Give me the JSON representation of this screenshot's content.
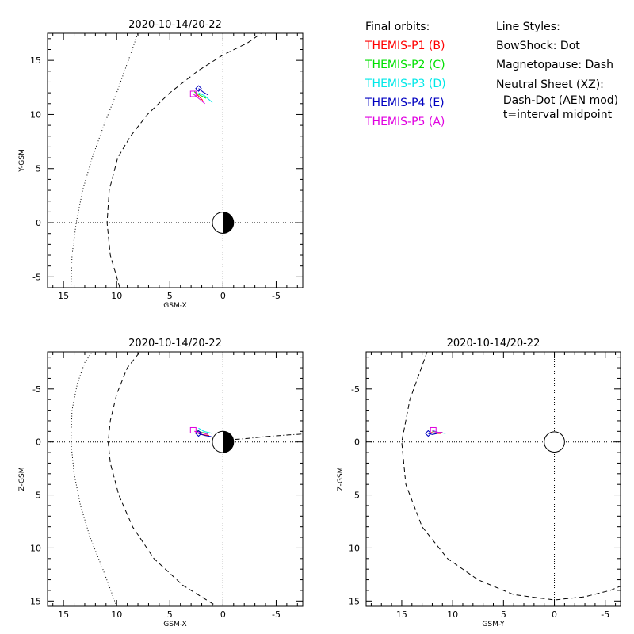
{
  "legend": {
    "orbits_title": "Final orbits:",
    "orbits": [
      {
        "label": "THEMIS-P1 (B)",
        "color": "#ff0000"
      },
      {
        "label": "THEMIS-P2 (C)",
        "color": "#00e000"
      },
      {
        "label": "THEMIS-P3 (D)",
        "color": "#00e8e8"
      },
      {
        "label": "THEMIS-P4 (E)",
        "color": "#0000c0"
      },
      {
        "label": "THEMIS-P5 (A)",
        "color": "#e000e0"
      }
    ],
    "styles_title": "Line Styles:",
    "styles": [
      "BowShock: Dot",
      "Magnetopause: Dash",
      "Neutral Sheet (XZ):",
      "  Dash-Dot (AEN mod)",
      "  t=interval midpoint"
    ]
  },
  "chart_data": [
    {
      "id": "xy",
      "type": "line",
      "title": "2020-10-14/20-22",
      "xlabel": "GSM-X",
      "ylabel": "Y-GSM",
      "xlim": [
        16.5,
        -7.5
      ],
      "ylim": [
        17.5,
        -6
      ],
      "xticks": [
        15,
        10,
        5,
        0,
        -5
      ],
      "yticks": [
        -5,
        0,
        5,
        10,
        15
      ],
      "earth": {
        "x": 0,
        "y": 0,
        "radius": 1,
        "shading": "half-dark"
      },
      "boundaries": {
        "bowshock": {
          "style": "dotted",
          "x": [
            14.3,
            14.2,
            13.8,
            13.2,
            12.3,
            11.2,
            10.0,
            8.9,
            8.0
          ],
          "y": [
            -6,
            -3,
            0,
            3,
            6,
            9,
            12,
            15,
            17.5
          ]
        },
        "magnetopause": {
          "style": "dashed",
          "x": [
            9.7,
            10.6,
            10.9,
            10.7,
            9.9,
            8.7,
            7.1,
            5.0,
            2.4,
            0.0,
            -2.3,
            -3.6
          ],
          "y": [
            -6,
            -3,
            0,
            3,
            6,
            8,
            10,
            12,
            14,
            15.5,
            16.6,
            17.5
          ]
        }
      },
      "orbits": [
        {
          "name": "THEMIS-P1 (B)",
          "color": "#ff0000",
          "x": [
            2.6,
            2.2,
            1.9
          ],
          "y": [
            12.0,
            11.6,
            11.3
          ]
        },
        {
          "name": "THEMIS-P2 (C)",
          "color": "#00e000",
          "x": [
            2.7,
            2.2,
            1.6
          ],
          "y": [
            12.1,
            11.8,
            11.5
          ]
        },
        {
          "name": "THEMIS-P3 (D)",
          "color": "#00e8e8",
          "x": [
            2.3,
            1.7,
            1.0
          ],
          "y": [
            12.0,
            11.7,
            11.1
          ]
        },
        {
          "name": "THEMIS-P4 (E)",
          "color": "#0000c0",
          "x": [
            2.3,
            1.9,
            1.4
          ],
          "y": [
            12.4,
            12.1,
            11.8
          ]
        },
        {
          "name": "THEMIS-P5 (A)",
          "color": "#e000e0",
          "x": [
            2.8,
            2.3,
            1.7
          ],
          "y": [
            11.9,
            11.5,
            11.0
          ]
        }
      ],
      "markers": [
        {
          "shape": "square",
          "color": "#e000e0",
          "x": 2.8,
          "y": 11.9
        },
        {
          "shape": "diamond",
          "color": "#0000c0",
          "x": 2.3,
          "y": 12.4
        }
      ],
      "grid": false
    },
    {
      "id": "xz",
      "type": "line",
      "title": "2020-10-14/20-22",
      "xlabel": "GSM-X",
      "ylabel": "Z-GSM",
      "xlim": [
        16.5,
        -7.5
      ],
      "ylim": [
        -8.5,
        15.5
      ],
      "xticks": [
        15,
        10,
        5,
        0,
        -5
      ],
      "yticks": [
        -5,
        0,
        5,
        10,
        15
      ],
      "earth": {
        "x": 0,
        "y": 0,
        "radius": 1,
        "shading": "half-dark"
      },
      "boundaries": {
        "bowshock": {
          "style": "dotted",
          "x": [
            10.0,
            11.3,
            12.5,
            13.4,
            14.0,
            14.3,
            14.2,
            13.7,
            13.0,
            12.3
          ],
          "y": [
            15.5,
            12,
            9,
            6,
            3,
            0,
            -3,
            -5.5,
            -7.5,
            -8.5
          ]
        },
        "magnetopause": {
          "style": "dashed",
          "x": [
            0.9,
            3.8,
            6.5,
            8.5,
            9.8,
            10.6,
            10.8,
            10.6,
            10.0,
            9.0,
            7.8
          ],
          "y": [
            15.3,
            13.5,
            11,
            8,
            5,
            2,
            0,
            -2,
            -4.5,
            -7,
            -8.5
          ]
        },
        "neutral_sheet": {
          "style": "dashdot",
          "x": [
            0.8,
            -2,
            -4,
            -6,
            -7.5
          ],
          "y": [
            -0.1,
            -0.3,
            -0.5,
            -0.65,
            -0.75
          ]
        }
      },
      "orbits": [
        {
          "name": "THEMIS-P1 (B)",
          "color": "#ff0000",
          "x": [
            2.6,
            2.0,
            1.3
          ],
          "y": [
            -0.9,
            -0.7,
            -0.6
          ]
        },
        {
          "name": "THEMIS-P2 (C)",
          "color": "#00e000",
          "x": [
            2.5,
            2.0,
            1.4
          ],
          "y": [
            -1.1,
            -0.9,
            -0.8
          ]
        },
        {
          "name": "THEMIS-P3 (D)",
          "color": "#00e8e8",
          "x": [
            2.3,
            1.8,
            1.0
          ],
          "y": [
            -1.3,
            -1.0,
            -0.8
          ]
        },
        {
          "name": "THEMIS-P4 (E)",
          "color": "#0000c0",
          "x": [
            2.3,
            1.7,
            1.1
          ],
          "y": [
            -0.8,
            -0.6,
            -0.5
          ]
        },
        {
          "name": "THEMIS-P5 (A)",
          "color": "#e000e0",
          "x": [
            2.7,
            2.1,
            1.4
          ],
          "y": [
            -1.0,
            -0.9,
            -0.7
          ]
        }
      ],
      "markers": [
        {
          "shape": "square",
          "color": "#e000e0",
          "x": 2.8,
          "y": -1.1
        },
        {
          "shape": "diamond",
          "color": "#0000c0",
          "x": 2.3,
          "y": -0.8
        }
      ],
      "grid": false
    },
    {
      "id": "yz",
      "type": "line",
      "title": "2020-10-14/20-22",
      "xlabel": "GSM-Y",
      "ylabel": "Z-GSM",
      "xlim": [
        18.5,
        -6.5
      ],
      "ylim": [
        -8.5,
        15.5
      ],
      "xticks": [
        15,
        10,
        5,
        0,
        -5
      ],
      "yticks": [
        -5,
        0,
        5,
        10,
        15
      ],
      "earth": {
        "x": 0,
        "y": 0,
        "radius": 1,
        "shading": "none"
      },
      "boundaries": {
        "magnetopause": {
          "style": "dashed",
          "x": [
            12.5,
            14.2,
            15.0,
            14.6,
            13.0,
            10.5,
            7.5,
            4.0,
            0.0,
            -3.0,
            -5.5,
            -6.5
          ],
          "y": [
            -8.5,
            -4,
            0,
            4,
            8,
            11,
            13,
            14.4,
            14.9,
            14.6,
            14.0,
            13.6
          ]
        }
      },
      "orbits": [
        {
          "name": "THEMIS-P1 (B)",
          "color": "#ff0000",
          "x": [
            12.1,
            11.7,
            11.1
          ],
          "y": [
            -0.9,
            -0.8,
            -0.8
          ]
        },
        {
          "name": "THEMIS-P2 (C)",
          "color": "#00e000",
          "x": [
            12.0,
            11.5,
            11.0
          ],
          "y": [
            -1.0,
            -0.9,
            -0.9
          ]
        },
        {
          "name": "THEMIS-P3 (D)",
          "color": "#00e8e8",
          "x": [
            12.0,
            11.4,
            10.7
          ],
          "y": [
            -1.1,
            -0.9,
            -0.8
          ]
        },
        {
          "name": "THEMIS-P4 (E)",
          "color": "#0000c0",
          "x": [
            12.4,
            12.0,
            11.5
          ],
          "y": [
            -0.8,
            -0.7,
            -0.8
          ]
        },
        {
          "name": "THEMIS-P5 (A)",
          "color": "#e000e0",
          "x": [
            12.0,
            11.6,
            11.0
          ],
          "y": [
            -1.1,
            -0.9,
            -0.9
          ]
        }
      ],
      "markers": [
        {
          "shape": "square",
          "color": "#e000e0",
          "x": 11.9,
          "y": -1.1
        },
        {
          "shape": "diamond",
          "color": "#0000c0",
          "x": 12.4,
          "y": -0.8
        }
      ],
      "grid": false
    }
  ]
}
